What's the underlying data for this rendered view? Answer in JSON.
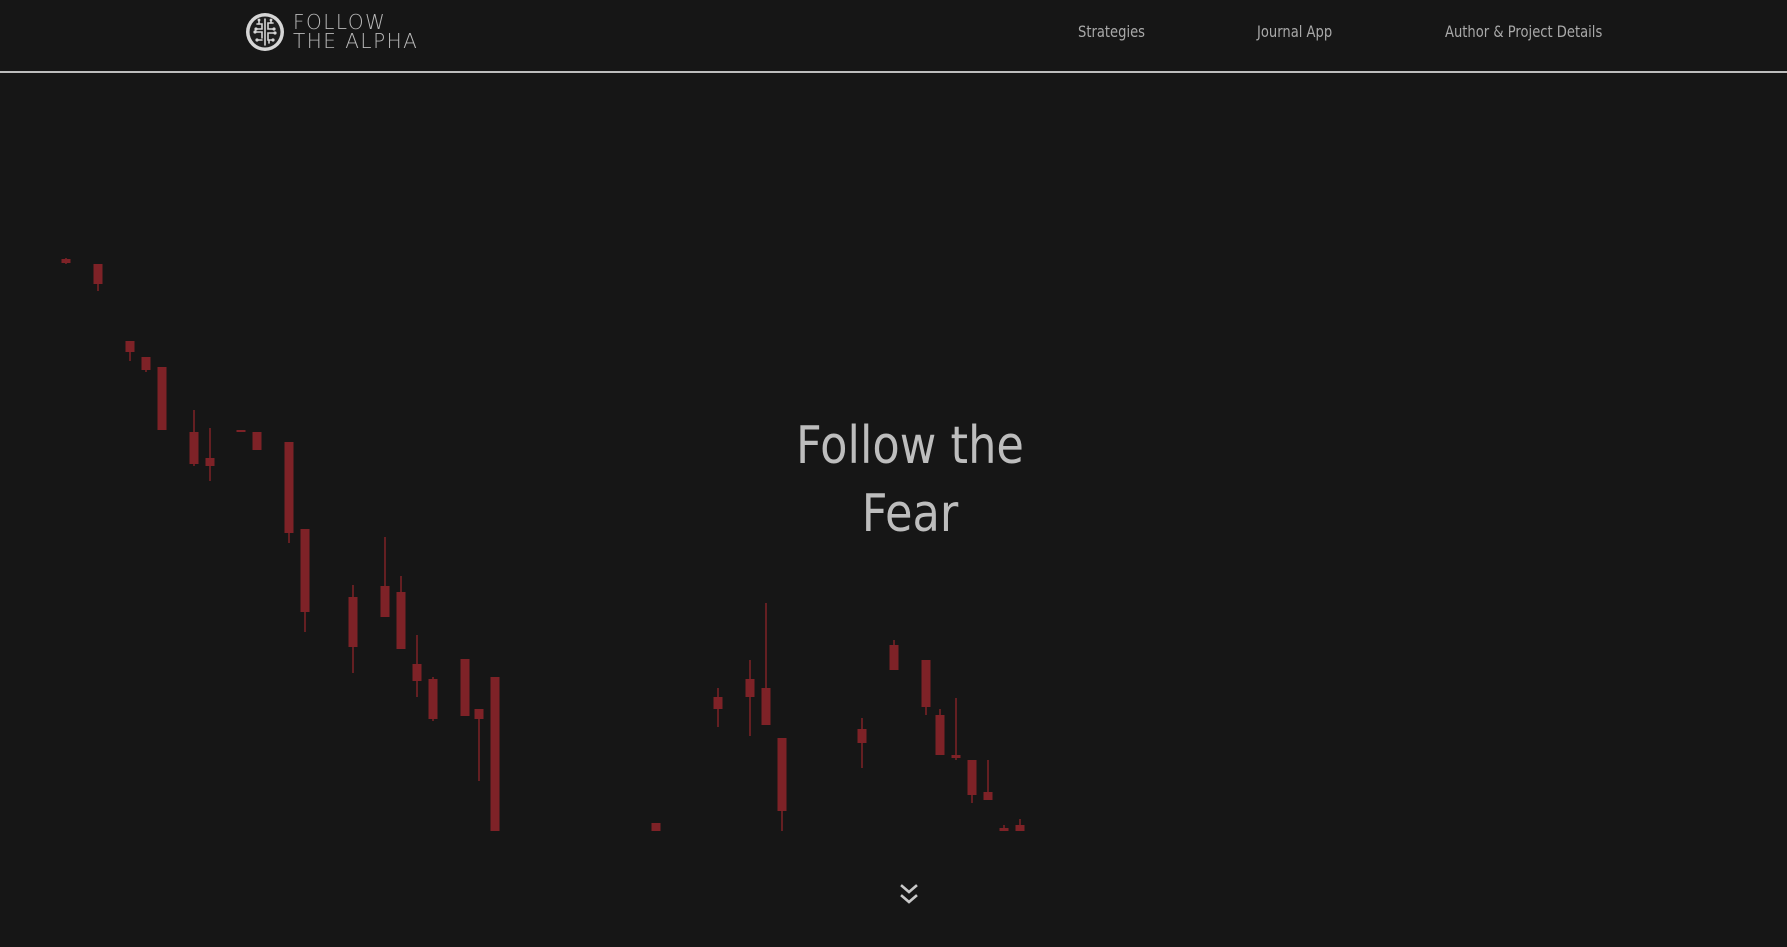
{
  "header": {
    "logo": {
      "line1": "FOLLOW",
      "line2": "THE ALPHA",
      "icon": "brain-circuit-icon"
    },
    "nav": [
      {
        "label": "Strategies"
      },
      {
        "label": "Journal App"
      },
      {
        "label": "Author & Project Details"
      }
    ]
  },
  "hero": {
    "title_line1": "Follow the",
    "title_line2": "Fear",
    "scroll_icon": "double-chevron-down-icon"
  },
  "colors": {
    "background": "#161616",
    "text": "#bdbdbd",
    "nav_text": "#a9a9a9",
    "candle": "#7e2227"
  },
  "background_candles": [
    {
      "o": 259,
      "c": 263,
      "h": 258,
      "l": 264
    },
    {
      "o": 264,
      "c": 284,
      "h": 264,
      "l": 291
    },
    {
      "o": 341,
      "c": 352,
      "h": 341,
      "l": 361
    },
    {
      "o": 357,
      "c": 370,
      "h": 357,
      "l": 372
    },
    {
      "o": 367,
      "c": 430,
      "h": 367,
      "l": 430
    },
    {
      "o": 432,
      "c": 464,
      "h": 410,
      "l": 466
    },
    {
      "o": 458,
      "c": 466,
      "h": 428,
      "l": 481
    },
    {
      "o": 430,
      "c": 431,
      "h": 430,
      "l": 432
    },
    {
      "o": 432,
      "c": 450,
      "h": 432,
      "l": 450
    },
    {
      "o": 442,
      "c": 533,
      "h": 442,
      "l": 543
    },
    {
      "o": 529,
      "c": 612,
      "h": 529,
      "l": 632
    },
    {
      "o": 597,
      "c": 647,
      "h": 585,
      "l": 673
    },
    {
      "o": 586,
      "c": 617,
      "h": 537,
      "l": 617
    },
    {
      "o": 592,
      "c": 649,
      "h": 576,
      "l": 649
    },
    {
      "o": 664,
      "c": 681,
      "h": 635,
      "l": 697
    },
    {
      "o": 679,
      "c": 719,
      "h": 677,
      "l": 721
    },
    {
      "o": 659,
      "c": 716,
      "h": 659,
      "l": 716
    },
    {
      "o": 709,
      "c": 719,
      "h": 709,
      "l": 781
    },
    {
      "o": 677,
      "c": 831,
      "h": 677,
      "l": 831
    },
    {
      "o": 823,
      "c": 831,
      "h": 823,
      "l": 831
    },
    {
      "o": 697,
      "c": 709,
      "h": 688,
      "l": 727
    },
    {
      "o": 679,
      "c": 697,
      "h": 660,
      "l": 736
    },
    {
      "o": 688,
      "c": 725,
      "h": 603,
      "l": 725
    },
    {
      "o": 738,
      "c": 811,
      "h": 738,
      "l": 831
    },
    {
      "o": 729,
      "c": 743,
      "h": 718,
      "l": 768
    },
    {
      "o": 645,
      "c": 670,
      "h": 640,
      "l": 670
    },
    {
      "o": 660,
      "c": 707,
      "h": 660,
      "l": 715
    },
    {
      "o": 715,
      "c": 755,
      "h": 709,
      "l": 755
    },
    {
      "o": 755,
      "c": 758,
      "h": 698,
      "l": 760
    },
    {
      "o": 760,
      "c": 795,
      "h": 760,
      "l": 803
    },
    {
      "o": 792,
      "c": 800,
      "h": 760,
      "l": 800
    },
    {
      "o": 828,
      "c": 831,
      "h": 825,
      "l": 831
    },
    {
      "o": 825,
      "c": 831,
      "h": 819,
      "l": 831
    }
  ]
}
